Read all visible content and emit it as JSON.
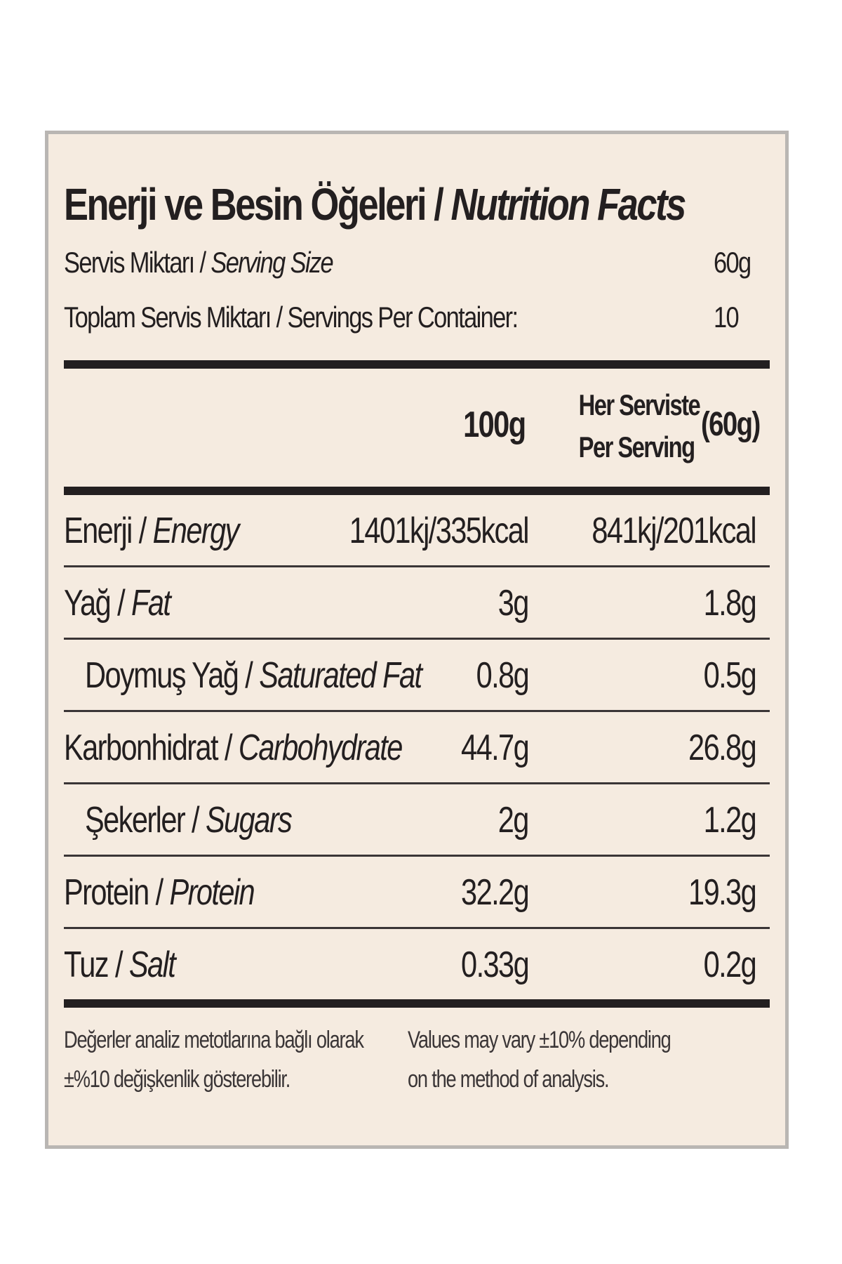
{
  "title": {
    "tr": "Enerji ve Besin Öğeleri / ",
    "en": "Nutrition Facts"
  },
  "serving_size": {
    "label_tr": "Servis Miktarı / ",
    "label_en": "Serving Size",
    "value": "60g"
  },
  "servings_per_container": {
    "label": "Toplam Servis Miktarı / Servings Per Container:",
    "value": "10"
  },
  "columns": {
    "per100": "100g",
    "per_serving_tr": "Her Serviste",
    "per_serving_en": "Per Serving",
    "per_serving_amount": "(60g)"
  },
  "rows": [
    {
      "label_tr": "Enerji / ",
      "label_en": "Energy",
      "per100": "1401kj/335kcal",
      "per_serving": "841kj/201kcal"
    },
    {
      "label_tr": "Yağ / ",
      "label_en": "Fat",
      "per100": "3g",
      "per_serving": "1.8g"
    },
    {
      "label_tr": "Doymuş Yağ / ",
      "label_en": "Saturated Fat",
      "per100": "0.8g",
      "per_serving": "0.5g"
    },
    {
      "label_tr": "Karbonhidrat / ",
      "label_en": "Carbohydrate",
      "per100": "44.7g",
      "per_serving": "26.8g"
    },
    {
      "label_tr": "Şekerler / ",
      "label_en": "Sugars",
      "per100": "2g",
      "per_serving": "1.2g"
    },
    {
      "label_tr": "Protein / ",
      "label_en": "Protein",
      "per100": "32.2g",
      "per_serving": "19.3g"
    },
    {
      "label_tr": "Tuz / ",
      "label_en": "Salt",
      "per100": "0.33g",
      "per_serving": "0.2g"
    }
  ],
  "footnote": {
    "tr": "Değerler analiz metotlarına bağlı olarak\n±%10 değişkenlik gösterebilir.",
    "en": "Values may vary ±10% depending\non the method of analysis."
  }
}
